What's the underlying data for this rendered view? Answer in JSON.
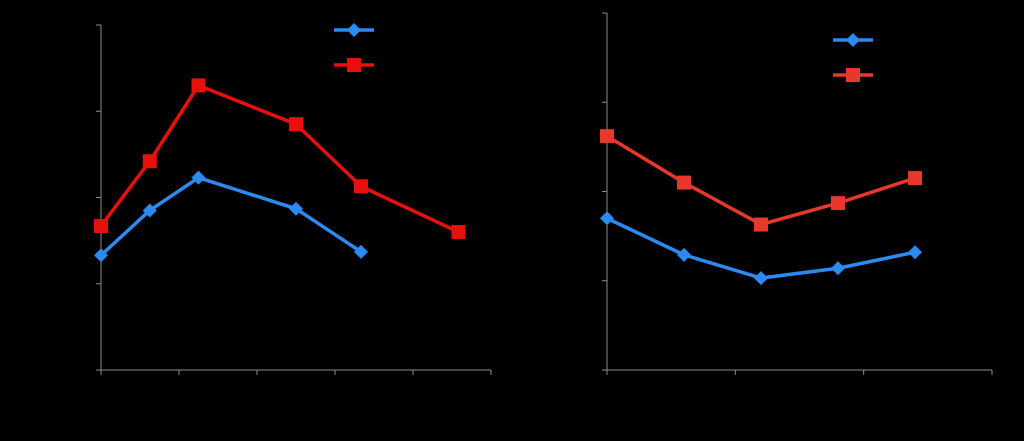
{
  "chart_data": [
    {
      "type": "line",
      "title": "",
      "xlabel": "",
      "ylabel": "",
      "xlim": [
        0,
        4.8
      ],
      "ylim": [
        0,
        4
      ],
      "grid": false,
      "legend_position": "top-right",
      "series": [
        {
          "color": "#2b8bf2",
          "marker": "diamond",
          "x": [
            0,
            0.6,
            1.2,
            2.4,
            3.2
          ],
          "y": [
            1.33,
            1.85,
            2.23,
            1.87,
            1.37
          ]
        },
        {
          "color": "#e8100c",
          "marker": "square",
          "x": [
            0,
            0.6,
            1.2,
            2.4,
            3.2,
            4.4
          ],
          "y": [
            1.67,
            2.42,
            3.3,
            2.85,
            2.13,
            1.6
          ]
        }
      ]
    },
    {
      "type": "line",
      "title": "",
      "xlabel": "",
      "ylabel": "",
      "xlim": [
        0,
        3
      ],
      "ylim": [
        0,
        4
      ],
      "grid": false,
      "legend_position": "top-right",
      "series": [
        {
          "color": "#2b8bf2",
          "marker": "diamond",
          "x": [
            0,
            0.6,
            1.2,
            1.8,
            2.4
          ],
          "y": [
            1.7,
            1.29,
            1.03,
            1.14,
            1.32
          ]
        },
        {
          "color": "#e8382c",
          "marker": "square",
          "x": [
            0,
            0.6,
            1.2,
            1.8,
            2.4
          ],
          "y": [
            2.62,
            2.1,
            1.63,
            1.87,
            2.15
          ]
        }
      ]
    }
  ]
}
